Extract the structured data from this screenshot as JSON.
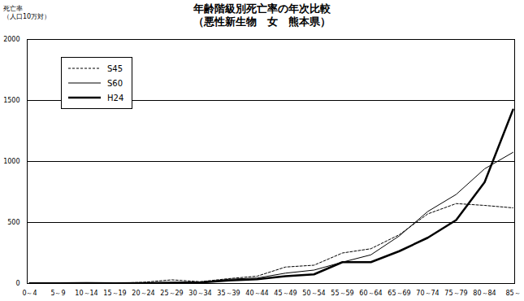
{
  "chart_data": {
    "type": "line",
    "title": "年齢階級別死亡率の年次比較",
    "subtitle": "（悪性新生物　女　熊本県）",
    "ylabel": "死亡率\n（人口10万対）",
    "categories": [
      "0～4",
      "5～9",
      "10～14",
      "15～19",
      "20～24",
      "25～29",
      "30～34",
      "35～39",
      "40～44",
      "45～49",
      "50～54",
      "55～59",
      "60～64",
      "65～69",
      "70～74",
      "75～79",
      "80～84",
      "85～"
    ],
    "series": [
      {
        "name": "S45",
        "color": "#000000",
        "line_style": "dashed",
        "values": [
          5,
          3,
          5,
          3,
          10,
          30,
          15,
          40,
          60,
          135,
          150,
          250,
          285,
          400,
          570,
          655,
          640,
          620
        ]
      },
      {
        "name": "S60",
        "color": "#000000",
        "line_style": "solid",
        "values": [
          3,
          2,
          5,
          2,
          5,
          10,
          10,
          35,
          45,
          85,
          110,
          175,
          235,
          390,
          590,
          730,
          940,
          1075
        ]
      },
      {
        "name": "H24",
        "color": "#000000",
        "line_style": "thick",
        "values": [
          2,
          1,
          3,
          1,
          3,
          5,
          8,
          25,
          35,
          60,
          75,
          175,
          175,
          265,
          375,
          520,
          830,
          1425
        ]
      }
    ],
    "ylim": [
      0,
      2000
    ],
    "yticks": [
      0,
      500,
      1000,
      1500,
      2000
    ],
    "grid": true,
    "legend": "upper left"
  }
}
